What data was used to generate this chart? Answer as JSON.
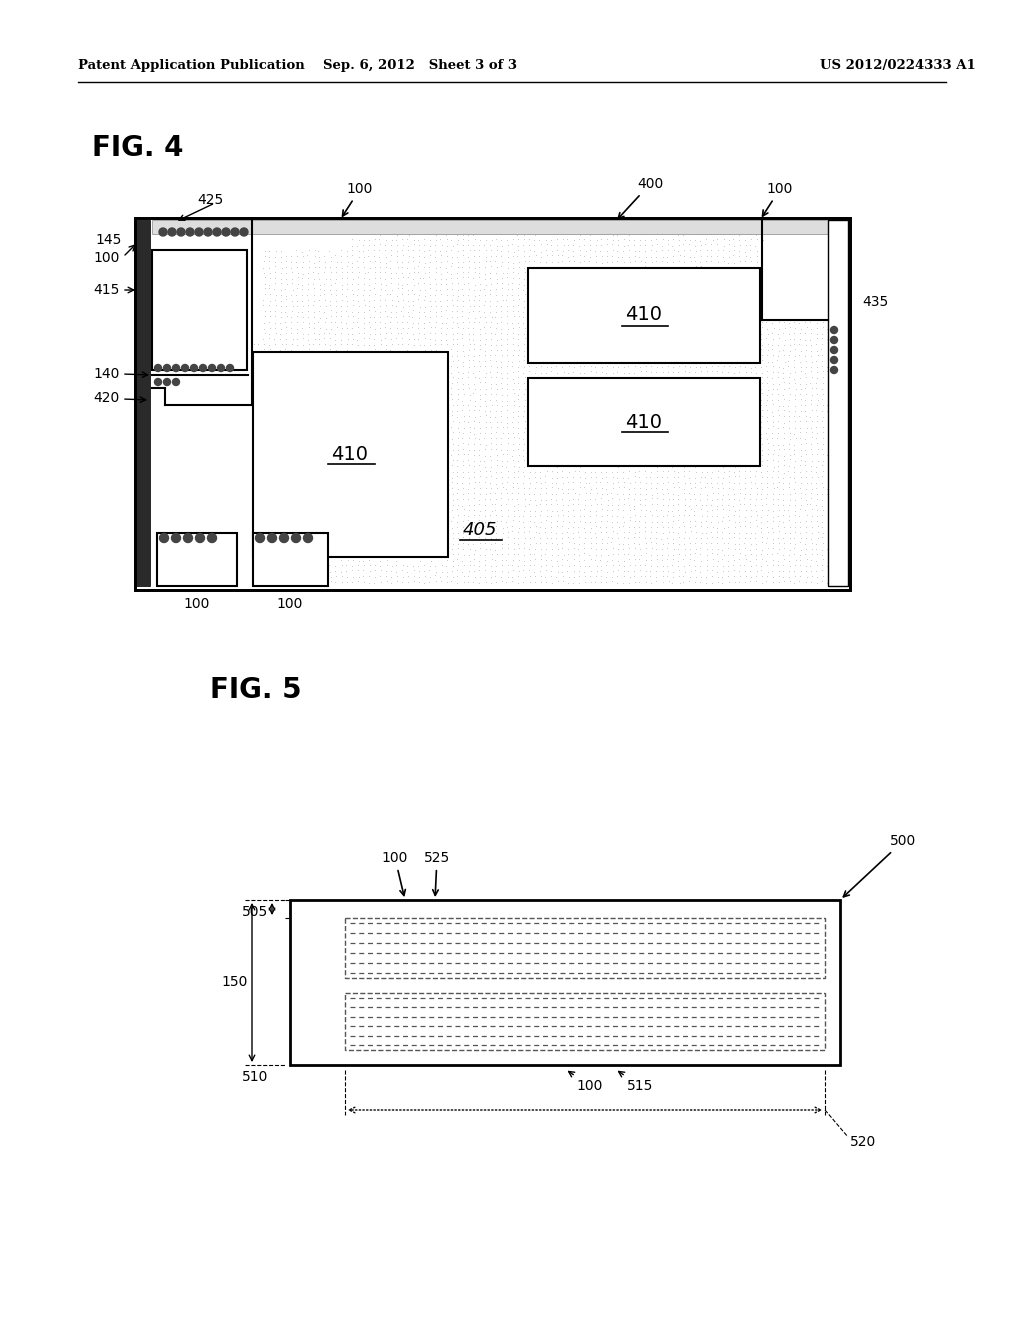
{
  "header_left": "Patent Application Publication",
  "header_mid": "Sep. 6, 2012   Sheet 3 of 3",
  "header_right": "US 2012/0224333 A1",
  "fig4_label": "FIG. 4",
  "fig5_label": "FIG. 5",
  "bg": "#ffffff",
  "lc": "#000000"
}
